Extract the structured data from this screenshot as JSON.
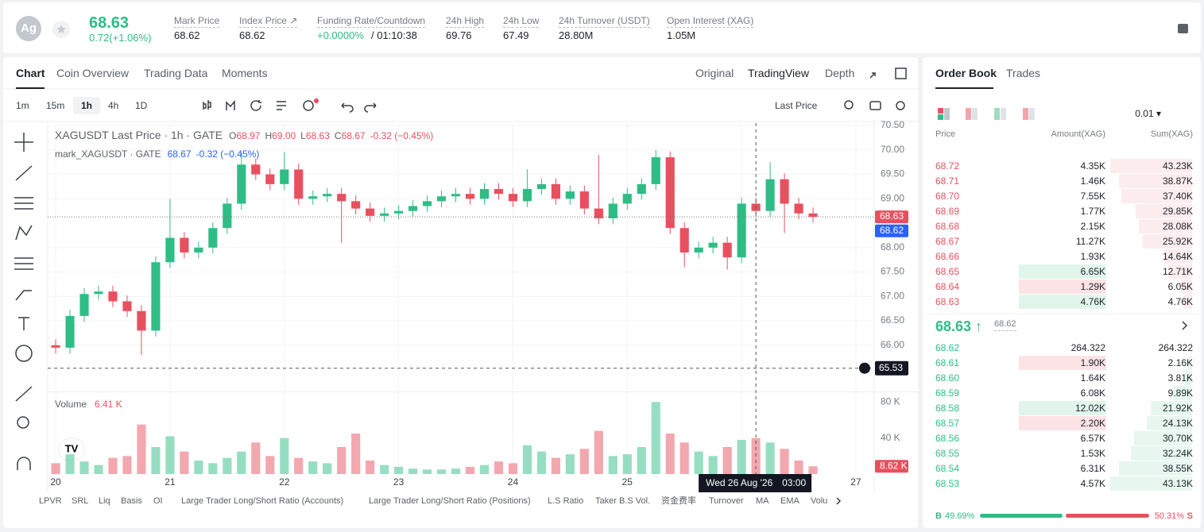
{
  "header": {
    "symbol_icon": "Ag",
    "price": "68.63",
    "change": "0.72(+1.06%)",
    "stats": [
      {
        "label": "Mark Price",
        "value": "68.62"
      },
      {
        "label": "Index Price ↗",
        "value": "68.62"
      },
      {
        "label": "Funding Rate/Countdown",
        "value": "+0.0000%",
        "value2": "/ 01:10:38"
      },
      {
        "label": "24h High",
        "value": "69.76"
      },
      {
        "label": "24h Low",
        "value": "67.49"
      },
      {
        "label": "24h Turnover (USDT)",
        "value": "28.80M"
      },
      {
        "label": "Open Interest (XAG)",
        "value": "1.05M"
      }
    ]
  },
  "chart_tabs": [
    "Chart",
    "Coin Overview",
    "Trading Data",
    "Moments"
  ],
  "view_tabs": [
    "Original",
    "TradingView",
    "Depth"
  ],
  "intervals": [
    "1m",
    "15m",
    "1h",
    "4h",
    "1D"
  ],
  "price_source": "Last Price",
  "chart_data": {
    "type": "candlestick",
    "title": "XAGUSDT Last Price · 1h · GATE",
    "ohlc_legend": [
      {
        "key": "O",
        "value": "68.97"
      },
      {
        "key": "H",
        "value": "69.00"
      },
      {
        "key": "L",
        "value": "68.63"
      },
      {
        "key": "C",
        "value": "68.67"
      }
    ],
    "change_legend": "-0.32 (−0.45%)",
    "mark_legend": {
      "name": "mark_XAGUSDT · GATE",
      "value": "68.67",
      "change": "-0.32 (−0.45%)"
    },
    "x": [
      20,
      20.125,
      20.25,
      20.375,
      20.5,
      20.625,
      20.75,
      20.875,
      21,
      21.125,
      21.25,
      21.375,
      21.5,
      21.625,
      21.75,
      21.875,
      22,
      22.125,
      22.25,
      22.375,
      22.5,
      22.625,
      22.75,
      22.875,
      23,
      23.125,
      23.25,
      23.375,
      23.5,
      23.625,
      23.75,
      23.875,
      24,
      24.125,
      24.25,
      24.375,
      24.5,
      24.625,
      24.75,
      24.875,
      25,
      25.125,
      25.25,
      25.375,
      25.5,
      25.625,
      25.75,
      25.875,
      26,
      26.125,
      26.25,
      26.375,
      26.5,
      26.625
    ],
    "open": [
      66.0,
      65.95,
      66.6,
      67.05,
      67.1,
      66.9,
      66.7,
      66.3,
      67.7,
      68.2,
      67.9,
      68.0,
      68.4,
      68.9,
      69.7,
      69.5,
      69.3,
      69.6,
      69.0,
      69.05,
      69.1,
      68.95,
      68.8,
      68.65,
      68.7,
      68.75,
      68.85,
      68.95,
      69.05,
      69.1,
      69.0,
      69.2,
      69.1,
      68.95,
      69.2,
      69.3,
      69.0,
      69.15,
      68.8,
      68.6,
      68.9,
      69.1,
      69.3,
      69.85,
      68.4,
      67.9,
      68.0,
      68.1,
      67.8,
      68.9,
      68.75,
      69.4,
      68.9,
      68.7
    ],
    "high": [
      66.12,
      66.72,
      67.17,
      67.22,
      67.22,
      67.02,
      66.82,
      67.82,
      69.0,
      68.32,
      68.12,
      68.52,
      69.02,
      69.95,
      69.82,
      69.62,
      69.95,
      69.72,
      69.17,
      69.22,
      69.22,
      69.07,
      68.92,
      68.82,
      68.87,
      68.97,
      69.07,
      69.17,
      69.22,
      69.22,
      69.32,
      69.32,
      69.22,
      69.6,
      69.42,
      69.42,
      69.27,
      69.27,
      69.9,
      69.02,
      69.22,
      69.42,
      70.0,
      69.97,
      68.52,
      68.12,
      68.22,
      68.22,
      69.02,
      69.02,
      69.75,
      69.52,
      69.02,
      68.82
    ],
    "low": [
      65.83,
      65.83,
      66.48,
      66.93,
      66.78,
      66.58,
      65.8,
      66.18,
      67.58,
      67.78,
      67.78,
      67.88,
      68.28,
      68.78,
      69.38,
      69.18,
      69.18,
      68.88,
      68.88,
      68.93,
      68.1,
      68.68,
      68.53,
      68.53,
      68.58,
      68.63,
      68.73,
      68.83,
      68.93,
      68.88,
      68.88,
      68.98,
      68.83,
      68.83,
      69.08,
      68.88,
      68.88,
      68.68,
      68.48,
      68.48,
      68.78,
      68.98,
      69.18,
      68.28,
      67.6,
      67.78,
      67.88,
      67.55,
      67.68,
      68.63,
      68.63,
      68.3,
      68.58,
      68.51
    ],
    "close": [
      65.95,
      66.6,
      67.05,
      67.1,
      66.9,
      66.7,
      66.3,
      67.7,
      68.2,
      67.9,
      68.0,
      68.4,
      68.9,
      69.7,
      69.5,
      69.3,
      69.6,
      69.0,
      69.05,
      69.1,
      68.95,
      68.8,
      68.65,
      68.7,
      68.75,
      68.85,
      68.95,
      69.05,
      69.1,
      69.0,
      69.2,
      69.1,
      68.95,
      69.2,
      69.3,
      69.0,
      69.15,
      68.8,
      68.6,
      68.9,
      69.1,
      69.3,
      69.85,
      68.4,
      67.9,
      68.0,
      68.1,
      67.8,
      68.9,
      68.75,
      69.4,
      68.9,
      68.7,
      68.63
    ],
    "up_color": "#2ebd85",
    "down_color": "#e8505f",
    "xlim": [
      19.93,
      27.16
    ],
    "xticks": [
      20,
      21,
      22,
      23,
      24,
      25,
      26,
      27
    ],
    "ylim": [
      65.07,
      70.55
    ],
    "yticks": [
      {
        "value": 70.5,
        "label": "70.50"
      },
      {
        "value": 70,
        "label": "70.00"
      },
      {
        "value": 69.5,
        "label": "69.50"
      },
      {
        "value": 69,
        "label": "69.00"
      },
      {
        "value": 68,
        "label": "68.00"
      },
      {
        "value": 67.5,
        "label": "67.50"
      },
      {
        "value": 67,
        "label": "67.00"
      },
      {
        "value": 66.5,
        "label": "66.50"
      },
      {
        "value": 66,
        "label": "66.00"
      }
    ],
    "grid": true,
    "mark_price": 68.62,
    "crosshair": {
      "x": 26.125,
      "date_label": "Wed 26 Aug '26",
      "time_label": "03:00",
      "y": 65.53
    },
    "volume": {
      "title": "Volume",
      "legend_value": "6.41 K",
      "values": [
        12,
        22,
        14,
        10,
        18,
        20,
        55,
        30,
        42,
        25,
        15,
        12,
        18,
        25,
        35,
        20,
        40,
        18,
        14,
        12,
        30,
        45,
        15,
        10,
        8,
        6,
        5,
        5,
        6,
        8,
        10,
        14,
        12,
        32,
        25,
        18,
        22,
        28,
        48,
        20,
        22,
        30,
        80,
        45,
        35,
        25,
        20,
        30,
        38,
        40,
        35,
        28,
        15,
        8.62
      ],
      "last_label": "8.62 K",
      "ylim": [
        0,
        90
      ],
      "yticks": [
        {
          "value": 80,
          "label": "80 K"
        },
        {
          "value": 40,
          "label": "40 K"
        }
      ]
    }
  },
  "order_book": {
    "tabs": [
      "Order Book",
      "Trades"
    ],
    "precision": "0.01 ▾",
    "columns": [
      "Price",
      "Amount(XAG)",
      "Sum(XAG)"
    ],
    "asks": [
      {
        "price": "68.72",
        "amount": "4.35K",
        "sum": 43.23,
        "sum_label": "43.23K"
      },
      {
        "price": "68.71",
        "amount": "1.46K",
        "sum": 38.87,
        "sum_label": "38.87K"
      },
      {
        "price": "68.70",
        "amount": "7.55K",
        "sum": 37.4,
        "sum_label": "37.40K"
      },
      {
        "price": "68.69",
        "amount": "1.77K",
        "sum": 29.85,
        "sum_label": "29.85K"
      },
      {
        "price": "68.68",
        "amount": "2.15K",
        "sum": 28.08,
        "sum_label": "28.08K"
      },
      {
        "price": "68.67",
        "amount": "11.27K",
        "sum": 25.92,
        "sum_label": "25.92K"
      },
      {
        "price": "68.66",
        "amount": "1.93K",
        "sum": 14.64,
        "sum_label": "14.64K"
      },
      {
        "price": "68.65",
        "amount": "6.65K",
        "sum": 12.71,
        "sum_label": "12.71K",
        "highlight": "buy"
      },
      {
        "price": "68.64",
        "amount": "1.29K",
        "sum": 6.05,
        "sum_label": "6.05K",
        "highlight": "sell"
      },
      {
        "price": "68.63",
        "amount": "4.76K",
        "sum": 4.76,
        "sum_label": "4.76K",
        "highlight": "buy"
      }
    ],
    "last": "68.63 ↑",
    "mark": "68.62",
    "bids": [
      {
        "price": "68.62",
        "amount": "264.322",
        "sum": 0.264322,
        "sum_label": "264.322"
      },
      {
        "price": "68.61",
        "amount": "1.90K",
        "sum": 2.16,
        "sum_label": "2.16K",
        "highlight": "sell"
      },
      {
        "price": "68.60",
        "amount": "1.64K",
        "sum": 3.81,
        "sum_label": "3.81K"
      },
      {
        "price": "68.59",
        "amount": "6.08K",
        "sum": 9.89,
        "sum_label": "9.89K"
      },
      {
        "price": "68.58",
        "amount": "12.02K",
        "sum": 21.92,
        "sum_label": "21.92K",
        "highlight": "buy"
      },
      {
        "price": "68.57",
        "amount": "2.20K",
        "sum": 24.13,
        "sum_label": "24.13K",
        "highlight": "sell"
      },
      {
        "price": "68.56",
        "amount": "6.57K",
        "sum": 30.7,
        "sum_label": "30.70K"
      },
      {
        "price": "68.55",
        "amount": "1.53K",
        "sum": 32.24,
        "sum_label": "32.24K"
      },
      {
        "price": "68.54",
        "amount": "6.31K",
        "sum": 38.55,
        "sum_label": "38.55K"
      },
      {
        "price": "68.53",
        "amount": "4.57K",
        "sum": 43.13,
        "sum_label": "43.13K"
      }
    ],
    "buy_label": "B",
    "buy_ratio": 49.69,
    "buy_ratio_label": "49.69%",
    "sell_ratio": 50.31,
    "sell_ratio_label": "50.31%",
    "sell_label": "S"
  },
  "indicators": [
    "LPVR",
    "SRL",
    "Liq",
    "Basis",
    "OI",
    "Large Trader Long/Short Ratio (Accounts)",
    "Large Trader Long/Short Ratio (Positions)",
    "L.S Ratio",
    "Taker B.S Vol.",
    "资金费率",
    "Turnover",
    "MA",
    "EMA",
    "Volu"
  ]
}
